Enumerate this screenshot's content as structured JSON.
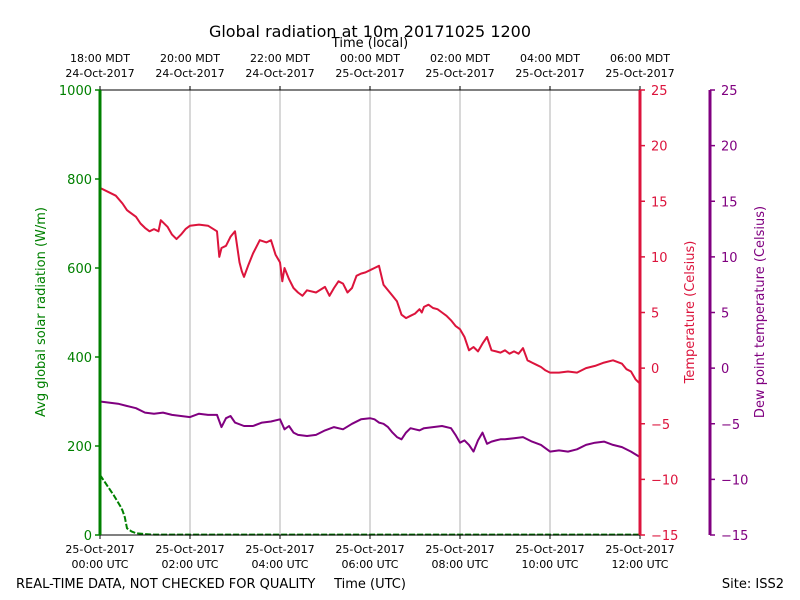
{
  "chart_data": {
    "type": "line",
    "title": "Global radiation at 10m 20171025 1200",
    "top_axis_label": "Time (local)",
    "xlabel": "Time (UTC)",
    "footer_left": "REAL-TIME DATA, NOT CHECKED FOR QUALITY",
    "footer_right": "Site: ISS2",
    "x_range_hours": [
      0,
      12
    ],
    "grid": "vertical",
    "bottom_ticks": [
      {
        "h": 0,
        "date": "25-Oct-2017",
        "time": "00:00 UTC"
      },
      {
        "h": 2,
        "date": "25-Oct-2017",
        "time": "02:00 UTC"
      },
      {
        "h": 4,
        "date": "25-Oct-2017",
        "time": "04:00 UTC"
      },
      {
        "h": 6,
        "date": "25-Oct-2017",
        "time": "06:00 UTC"
      },
      {
        "h": 8,
        "date": "25-Oct-2017",
        "time": "08:00 UTC"
      },
      {
        "h": 10,
        "date": "25-Oct-2017",
        "time": "10:00 UTC"
      },
      {
        "h": 12,
        "date": "25-Oct-2017",
        "time": "12:00 UTC"
      }
    ],
    "top_ticks": [
      {
        "h": 0,
        "time": "18:00 MDT",
        "date": "24-Oct-2017"
      },
      {
        "h": 2,
        "time": "20:00 MDT",
        "date": "24-Oct-2017"
      },
      {
        "h": 4,
        "time": "22:00 MDT",
        "date": "24-Oct-2017"
      },
      {
        "h": 6,
        "time": "00:00 MDT",
        "date": "25-Oct-2017"
      },
      {
        "h": 8,
        "time": "02:00 MDT",
        "date": "25-Oct-2017"
      },
      {
        "h": 10,
        "time": "04:00 MDT",
        "date": "25-Oct-2017"
      },
      {
        "h": 12,
        "time": "06:00 MDT",
        "date": "25-Oct-2017"
      }
    ],
    "axes": {
      "radiation": {
        "label": "Avg global solar radiation (W/m)",
        "color": "#008000",
        "range": [
          0,
          1000
        ],
        "ticks": [
          "0",
          "200",
          "400",
          "600",
          "800",
          "1000"
        ]
      },
      "temperature": {
        "label": "Temperature (Celsius)",
        "color": "#dc143c",
        "range": [
          -15,
          25
        ],
        "ticks": [
          "−15",
          "−10",
          "−5",
          "0",
          "5",
          "10",
          "15",
          "20",
          "25"
        ]
      },
      "dewpoint": {
        "label": "Dew point temperature (Celsius)",
        "color": "#800080",
        "range": [
          -15,
          25
        ],
        "ticks": [
          "−15",
          "−10",
          "−5",
          "0",
          "5",
          "10",
          "15",
          "20",
          "25"
        ]
      }
    },
    "series": [
      {
        "name": "Avg global solar radiation",
        "axis": "radiation",
        "color": "#008000",
        "x": [
          0,
          0.1,
          0.3,
          0.45,
          0.5,
          0.55,
          0.6,
          0.7,
          0.8,
          1.0,
          1.2,
          2,
          4,
          6,
          8,
          10,
          12
        ],
        "values": [
          135,
          120,
          90,
          65,
          55,
          40,
          15,
          8,
          4,
          2,
          1,
          1,
          1,
          1,
          1,
          1,
          1
        ]
      },
      {
        "name": "Temperature",
        "axis": "temperature",
        "color": "#dc143c",
        "x": [
          0,
          0.2,
          0.35,
          0.5,
          0.6,
          0.8,
          0.9,
          1.0,
          1.1,
          1.2,
          1.3,
          1.35,
          1.5,
          1.6,
          1.7,
          1.8,
          1.9,
          2.0,
          2.2,
          2.4,
          2.6,
          2.65,
          2.7,
          2.8,
          2.9,
          3.0,
          3.1,
          3.15,
          3.2,
          3.3,
          3.4,
          3.55,
          3.7,
          3.8,
          3.9,
          4.0,
          4.05,
          4.1,
          4.2,
          4.3,
          4.4,
          4.5,
          4.6,
          4.8,
          5.0,
          5.1,
          5.2,
          5.3,
          5.4,
          5.5,
          5.6,
          5.7,
          5.8,
          5.9,
          6.0,
          6.1,
          6.2,
          6.3,
          6.4,
          6.5,
          6.6,
          6.7,
          6.8,
          6.9,
          7.0,
          7.1,
          7.15,
          7.2,
          7.3,
          7.4,
          7.5,
          7.6,
          7.7,
          7.8,
          7.9,
          8.0,
          8.1,
          8.2,
          8.3,
          8.4,
          8.5,
          8.6,
          8.7,
          8.8,
          8.9,
          9.0,
          9.1,
          9.2,
          9.3,
          9.4,
          9.5,
          9.6,
          9.7,
          9.8,
          9.9,
          10.0,
          10.2,
          10.4,
          10.6,
          10.8,
          11.0,
          11.2,
          11.4,
          11.6,
          11.7,
          11.8,
          11.9,
          12.0
        ],
        "values": [
          16.2,
          15.8,
          15.5,
          14.8,
          14.2,
          13.6,
          13.0,
          12.6,
          12.3,
          12.5,
          12.3,
          13.3,
          12.7,
          12.0,
          11.6,
          12.0,
          12.5,
          12.8,
          12.9,
          12.8,
          12.3,
          10.0,
          10.8,
          11.0,
          11.8,
          12.3,
          9.5,
          8.7,
          8.2,
          9.3,
          10.3,
          11.5,
          11.3,
          11.5,
          10.2,
          9.5,
          7.8,
          9.0,
          8.0,
          7.2,
          6.8,
          6.5,
          7.0,
          6.8,
          7.3,
          6.5,
          7.2,
          7.8,
          7.6,
          6.8,
          7.2,
          8.3,
          8.5,
          8.6,
          8.8,
          9.0,
          9.2,
          7.5,
          7.0,
          6.5,
          6.0,
          4.8,
          4.5,
          4.7,
          4.9,
          5.3,
          5.0,
          5.5,
          5.7,
          5.4,
          5.3,
          5.0,
          4.7,
          4.3,
          3.8,
          3.5,
          2.8,
          1.6,
          1.9,
          1.5,
          2.2,
          2.8,
          1.6,
          1.5,
          1.4,
          1.6,
          1.3,
          1.5,
          1.3,
          1.8,
          0.7,
          0.5,
          0.3,
          0.1,
          -0.2,
          -0.4,
          -0.4,
          -0.3,
          -0.4,
          0.0,
          0.2,
          0.5,
          0.7,
          0.4,
          -0.1,
          -0.3,
          -1.0,
          -1.4
        ]
      },
      {
        "name": "Dew point temperature",
        "axis": "dewpoint",
        "color": "#800080",
        "x": [
          0,
          0.2,
          0.4,
          0.6,
          0.8,
          1.0,
          1.2,
          1.4,
          1.6,
          1.8,
          2.0,
          2.2,
          2.4,
          2.6,
          2.7,
          2.8,
          2.9,
          3.0,
          3.2,
          3.4,
          3.6,
          3.8,
          4.0,
          4.1,
          4.2,
          4.3,
          4.4,
          4.6,
          4.8,
          5.0,
          5.2,
          5.4,
          5.6,
          5.8,
          6.0,
          6.1,
          6.2,
          6.3,
          6.4,
          6.5,
          6.6,
          6.7,
          6.8,
          6.9,
          7.0,
          7.1,
          7.2,
          7.4,
          7.6,
          7.8,
          7.9,
          8.0,
          8.1,
          8.2,
          8.3,
          8.4,
          8.5,
          8.6,
          8.7,
          8.8,
          8.9,
          9.0,
          9.2,
          9.4,
          9.6,
          9.8,
          10.0,
          10.2,
          10.4,
          10.6,
          10.8,
          11.0,
          11.2,
          11.4,
          11.6,
          11.8,
          12.0
        ],
        "values": [
          -3.0,
          -3.1,
          -3.2,
          -3.4,
          -3.6,
          -4.0,
          -4.1,
          -4.0,
          -4.2,
          -4.3,
          -4.4,
          -4.1,
          -4.2,
          -4.2,
          -5.3,
          -4.5,
          -4.3,
          -4.9,
          -5.2,
          -5.2,
          -4.9,
          -4.8,
          -4.6,
          -5.5,
          -5.2,
          -5.8,
          -6.0,
          -6.1,
          -6.0,
          -5.6,
          -5.3,
          -5.5,
          -5.0,
          -4.6,
          -4.5,
          -4.6,
          -4.9,
          -5.0,
          -5.3,
          -5.8,
          -6.2,
          -6.4,
          -5.8,
          -5.4,
          -5.5,
          -5.6,
          -5.4,
          -5.3,
          -5.2,
          -5.4,
          -6.0,
          -6.7,
          -6.5,
          -6.9,
          -7.5,
          -6.5,
          -5.8,
          -6.8,
          -6.6,
          -6.5,
          -6.4,
          -6.4,
          -6.3,
          -6.2,
          -6.6,
          -6.9,
          -7.5,
          -7.4,
          -7.5,
          -7.3,
          -6.9,
          -6.7,
          -6.6,
          -6.9,
          -7.1,
          -7.5,
          -8.0
        ]
      }
    ]
  }
}
